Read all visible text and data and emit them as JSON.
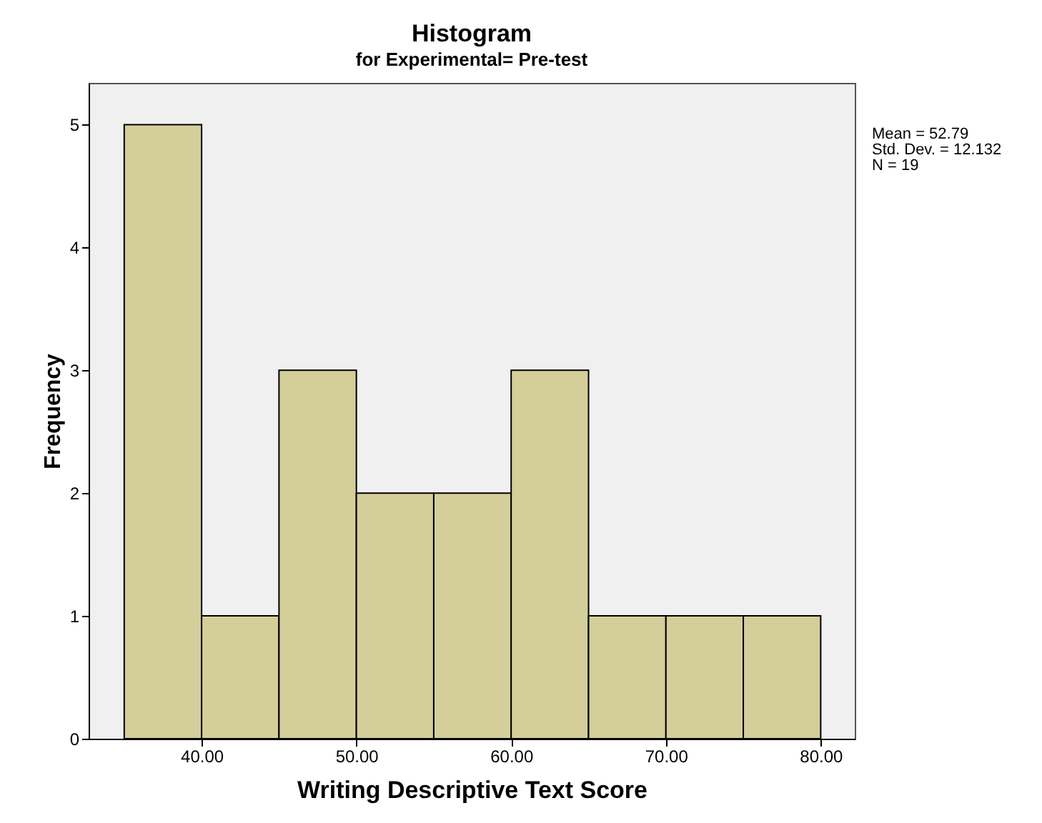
{
  "chart_data": {
    "type": "histogram",
    "title": "Histogram",
    "subtitle": "for Experimental= Pre-test",
    "xlabel": "Writing Descriptive Text Score",
    "ylabel": "Frequency",
    "bins": [
      35,
      40,
      45,
      50,
      55,
      60,
      65,
      70,
      75,
      80
    ],
    "values": [
      5,
      1,
      3,
      2,
      2,
      3,
      1,
      1,
      1
    ],
    "color": "#d4cf9a",
    "xlim": [
      32.7,
      82.2
    ],
    "xticks": [
      {
        "value": 40,
        "label": "40.00"
      },
      {
        "value": 50,
        "label": "50.00"
      },
      {
        "value": 60,
        "label": "60.00"
      },
      {
        "value": 70,
        "label": "70.00"
      },
      {
        "value": 80,
        "label": "80.00"
      }
    ],
    "ylim": [
      0,
      5.34
    ],
    "yticks": [
      0,
      1,
      2,
      3,
      4,
      5
    ],
    "grid": false,
    "annotations": [
      "Mean = 52.79",
      "Std. Dev. = 12.132",
      "N = 19"
    ]
  }
}
